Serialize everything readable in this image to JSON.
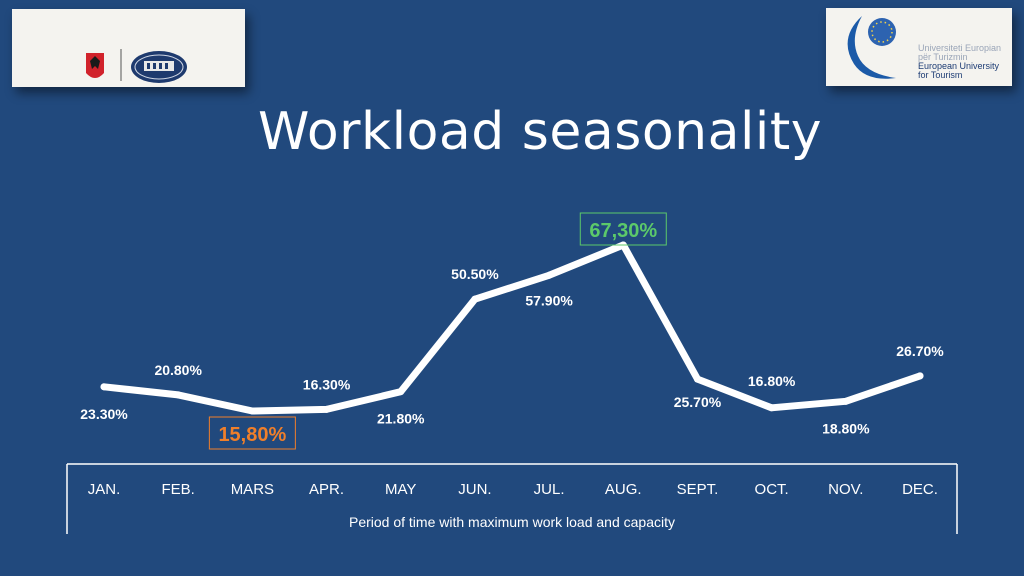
{
  "page": {
    "title": "Workload seasonality",
    "caption": "Period of time with maximum work load and capacity"
  },
  "logos": {
    "right": {
      "line1": "Universiteti Europian",
      "line2": "për Turizmin",
      "line3": "European University",
      "line4": "for Tourism"
    }
  },
  "colors": {
    "background": "#21497d",
    "line": "#ffffff",
    "max_highlight": "#5cc96a",
    "min_highlight": "#f07f2a"
  },
  "chart_data": {
    "type": "line",
    "categories": [
      "JAN.",
      "FEB.",
      "MARS",
      "APR.",
      "MAY",
      "JUN.",
      "JUL.",
      "AUG.",
      "SEPT.",
      "OCT.",
      "NOV.",
      "DEC."
    ],
    "values": [
      23.3,
      20.8,
      15.8,
      16.3,
      21.8,
      50.5,
      57.9,
      67.3,
      25.7,
      16.8,
      18.8,
      26.7
    ],
    "labels": [
      "23.30%",
      "20.80%",
      "15,80%",
      "16.30%",
      "21.80%",
      "50.50%",
      "57.90%",
      "67,30%",
      "25.70%",
      "16.80%",
      "18.80%",
      "26.70%"
    ],
    "label_position": [
      "below",
      "above",
      "below",
      "above",
      "below",
      "above",
      "below",
      "above",
      "above",
      "above",
      "below",
      "above"
    ],
    "highlight_max_index": 7,
    "highlight_min_index": 2,
    "title": "Workload seasonality",
    "xlabel": "Period of time with maximum work load and capacity",
    "ylabel": "",
    "ylim": [
      0,
      75
    ],
    "grid": false,
    "legend": "none"
  }
}
